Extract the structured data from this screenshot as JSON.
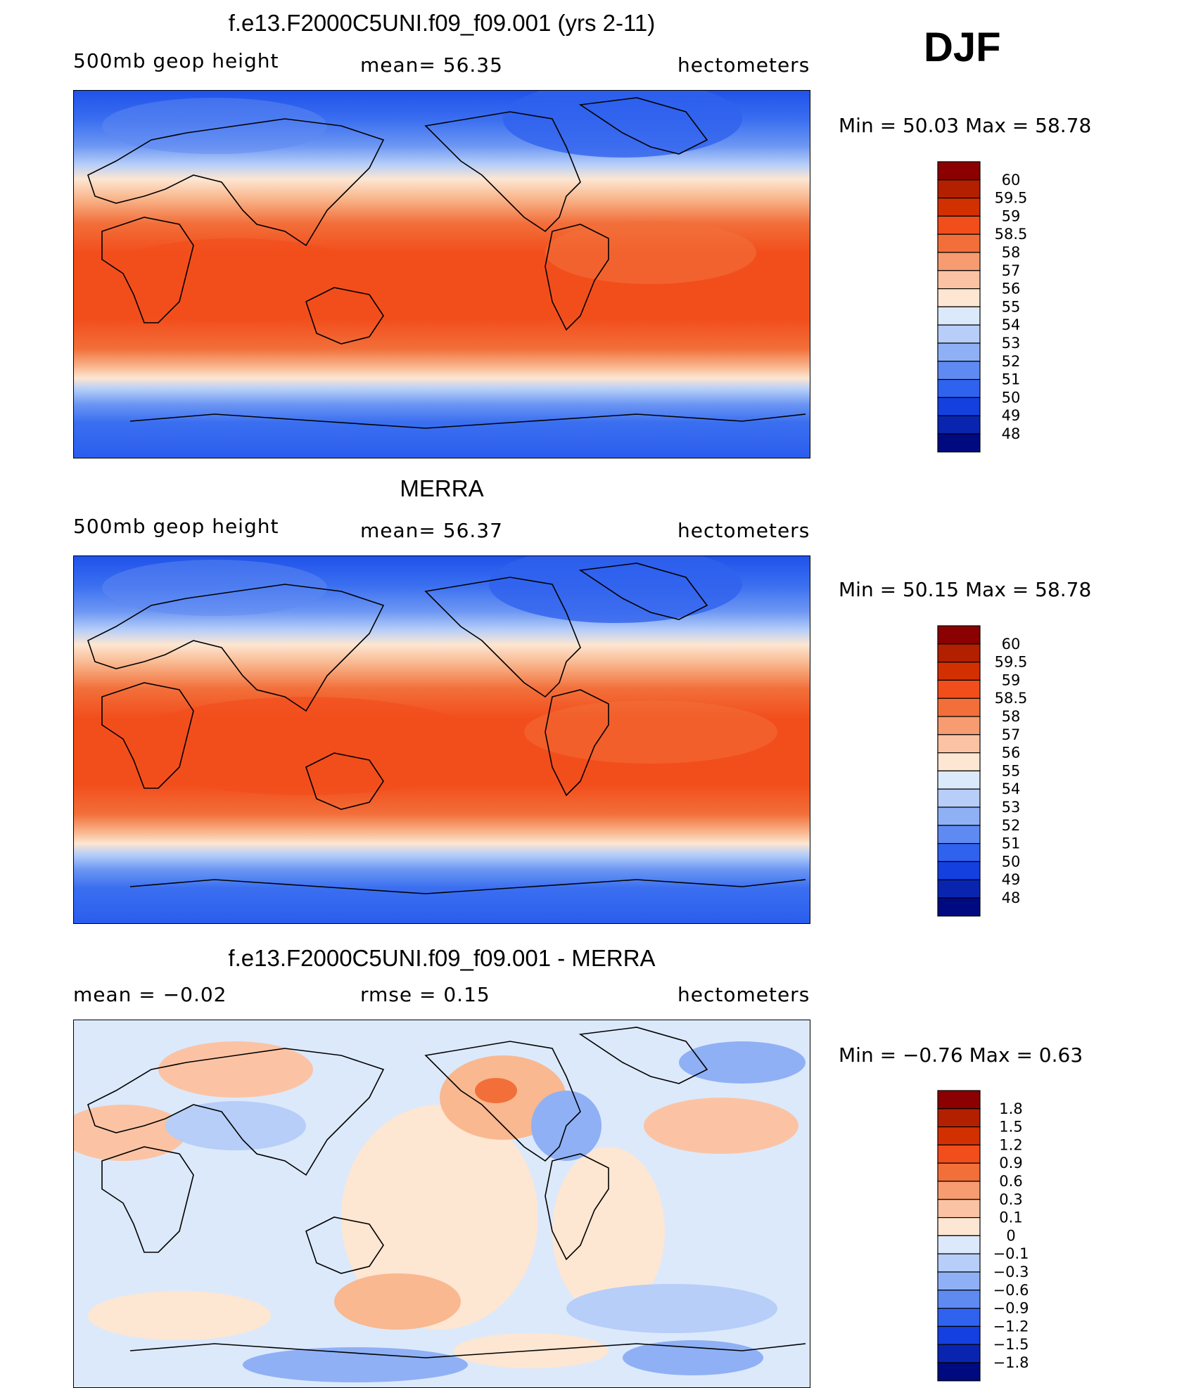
{
  "header": {
    "season": "DJF"
  },
  "panels": [
    {
      "id": "model",
      "title": "f.e13.F2000C5UNI.f09_f09.001 (yrs 2-11)",
      "left_label": "500mb geop height",
      "center_label": "mean=  56.35",
      "right_label": "hectometers",
      "minmax": "Min =   50.03  Max =   58.78",
      "colormap": "height"
    },
    {
      "id": "obs",
      "title": "MERRA",
      "left_label": "500mb geop height",
      "center_label": "mean=  56.37",
      "right_label": "hectometers",
      "minmax": "Min =   50.15  Max =   58.78",
      "colormap": "height"
    },
    {
      "id": "diff",
      "title": "f.e13.F2000C5UNI.f09_f09.001 - MERRA",
      "left_label": "mean =   −0.02",
      "center_label": "rmse =    0.15",
      "right_label": "hectometers",
      "minmax": "Min =   −0.76  Max =     0.63",
      "colormap": "diff"
    }
  ],
  "chart_data": [
    {
      "type": "heatmap",
      "title": "f.e13.F2000C5UNI.f09_f09.001 (yrs 2-11)",
      "variable": "500mb geop height",
      "units": "hectometers",
      "mean": 56.35,
      "min": 50.03,
      "max": 58.78,
      "levels": [
        48,
        49,
        50,
        51,
        52,
        53,
        54,
        55,
        56,
        57,
        58,
        58.5,
        59,
        59.5,
        60
      ]
    },
    {
      "type": "heatmap",
      "title": "MERRA",
      "variable": "500mb geop height",
      "units": "hectometers",
      "mean": 56.37,
      "min": 50.15,
      "max": 58.78,
      "levels": [
        48,
        49,
        50,
        51,
        52,
        53,
        54,
        55,
        56,
        57,
        58,
        58.5,
        59,
        59.5,
        60
      ]
    },
    {
      "type": "heatmap",
      "title": "f.e13.F2000C5UNI.f09_f09.001 - MERRA",
      "units": "hectometers",
      "mean": -0.02,
      "rmse": 0.15,
      "min": -0.76,
      "max": 0.63,
      "levels": [
        -1.8,
        -1.5,
        -1.2,
        -0.9,
        -0.6,
        -0.3,
        -0.1,
        0,
        0.1,
        0.3,
        0.6,
        0.9,
        1.2,
        1.5,
        1.8
      ]
    }
  ],
  "colorbars": {
    "height": {
      "labels": [
        "60",
        "59.5",
        "59",
        "58.5",
        "58",
        "57",
        "56",
        "55",
        "54",
        "53",
        "52",
        "51",
        "50",
        "49",
        "48"
      ],
      "colors": [
        "#8b0000",
        "#b22000",
        "#d33000",
        "#f24e1c",
        "#f26f3a",
        "#f79b70",
        "#fbc3a4",
        "#fde6d2",
        "#dce9fb",
        "#b6cef8",
        "#8fb0f5",
        "#5f8af2",
        "#2f62ee",
        "#1440e0",
        "#0925b0",
        "#000a80"
      ]
    },
    "diff": {
      "labels": [
        "1.8",
        "1.5",
        "1.2",
        "0.9",
        "0.6",
        "0.3",
        "0.1",
        "0",
        "−0.1",
        "−0.3",
        "−0.6",
        "−0.9",
        "−1.2",
        "−1.5",
        "−1.8"
      ],
      "colors": [
        "#8b0000",
        "#b22000",
        "#d33000",
        "#f24e1c",
        "#f26f3a",
        "#f79b70",
        "#fbc3a4",
        "#fde6d2",
        "#dce9fb",
        "#b6cef8",
        "#8fb0f5",
        "#5f8af2",
        "#2f62ee",
        "#1440e0",
        "#0925b0",
        "#000a80"
      ]
    }
  }
}
